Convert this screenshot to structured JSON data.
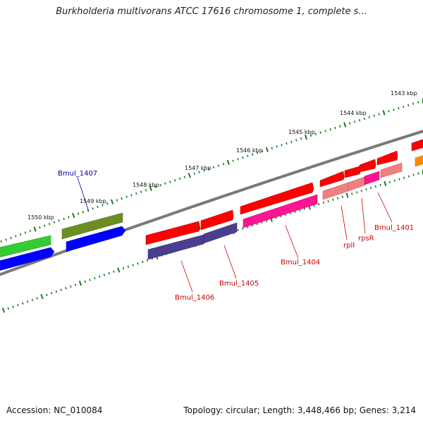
{
  "title": "Burkholderia multivorans ATCC 17616 chromosome 1, complete s...",
  "footer": {
    "accession": "Accession: NC_010084",
    "summary": "Topology: circular; Length: 3,448,466 bp; Genes: 3,214"
  },
  "kbp_labels": [
    "1543 kbp",
    "1544 kbp",
    "1545 kbp",
    "1546 kbp",
    "1547 kbp",
    "1548 kbp",
    "1549 kbp",
    "1550 kbp"
  ],
  "gene_labels": [
    {
      "text": "Bmul_1407",
      "color": "#000099"
    },
    {
      "text": "Bmul_1406",
      "color": "#cc0000"
    },
    {
      "text": "Bmul_1405",
      "color": "#cc0000"
    },
    {
      "text": "Bmul_1404",
      "color": "#cc0000"
    },
    {
      "text": "rplI",
      "color": "#cc0000"
    },
    {
      "text": "rpsR",
      "color": "#cc0000"
    },
    {
      "text": "Bmul_1401",
      "color": "#cc0000"
    }
  ],
  "colors": {
    "backbone": "#7a7a7a",
    "ruler_ticks": "#1a7a1a",
    "gene_red": "#ff0000",
    "gene_purple": "#4a3f8f",
    "gene_magenta": "#ff1493",
    "gene_pink": "#f08080",
    "gene_green": "#33cc33",
    "gene_olive": "#6b8e23",
    "gene_blue": "#0000ff",
    "gene_orange": "#ff8c00"
  }
}
